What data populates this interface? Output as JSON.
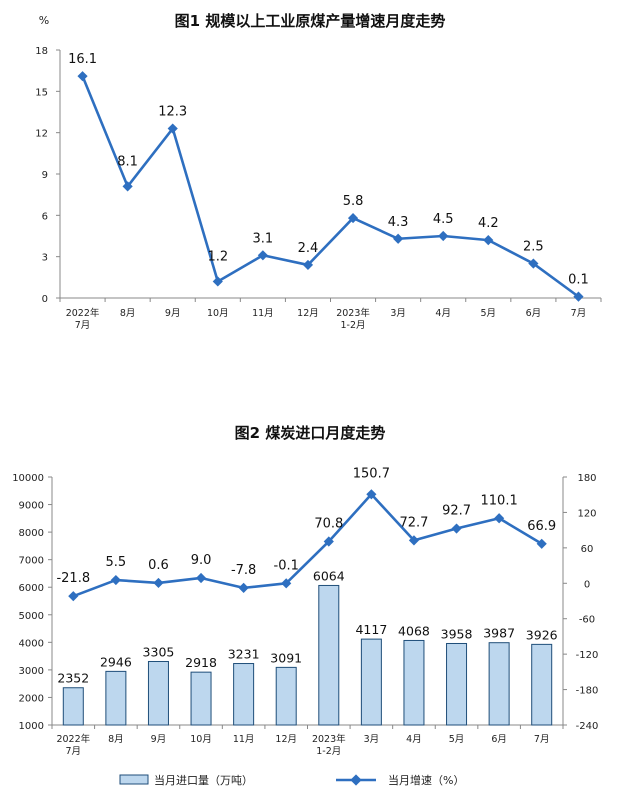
{
  "chart_data": [
    {
      "type": "line",
      "title": "图1  规模以上工业原煤产量增速月度走势",
      "ylabel": "%",
      "categories": [
        "2022年\n7月",
        "8月",
        "9月",
        "10月",
        "11月",
        "12月",
        "2023年\n1-2月",
        "3月",
        "4月",
        "5月",
        "6月",
        "7月"
      ],
      "values": [
        16.1,
        8.1,
        12.3,
        1.2,
        3.1,
        2.4,
        5.8,
        4.3,
        4.5,
        4.2,
        2.5,
        0.1
      ],
      "labels": [
        "16.1",
        "8.1",
        "12.3",
        "1.2",
        "3.1",
        "2.4",
        "5.8",
        "4.3",
        "4.5",
        "4.2",
        "2.5",
        "0.1"
      ],
      "ylim": [
        0,
        18
      ],
      "yticks": [
        "0",
        "3",
        "6",
        "9",
        "12",
        "15",
        "18"
      ],
      "color": "#2e6fc0",
      "grid": false
    },
    {
      "type": "bar+line",
      "title": "图2  煤炭进口月度走势",
      "categories": [
        "2022年\n7月",
        "8月",
        "9月",
        "10月",
        "11月",
        "12月",
        "2023年\n1-2月",
        "3月",
        "4月",
        "5月",
        "6月",
        "7月"
      ],
      "series": [
        {
          "name": "当月进口量（万吨）",
          "type": "bar",
          "axis": "left",
          "values": [
            2352,
            2946,
            3305,
            2918,
            3231,
            3091,
            6064,
            4117,
            4068,
            3958,
            3987,
            3926
          ],
          "labels": [
            "2352",
            "2946",
            "3305",
            "2918",
            "3231",
            "3091",
            "6064",
            "4117",
            "4068",
            "3958",
            "3987",
            "3926"
          ],
          "color": "#bdd7ee",
          "edge": "#1f4e79"
        },
        {
          "name": "当月增速（%）",
          "type": "line",
          "axis": "right",
          "values": [
            -21.8,
            5.5,
            0.6,
            9.0,
            -7.8,
            -0.1,
            70.8,
            150.7,
            72.7,
            92.7,
            110.1,
            66.9
          ],
          "labels": [
            "-21.8",
            "5.5",
            "0.6",
            "9.0",
            "-7.8",
            "-0.1",
            "70.8",
            "150.7",
            "72.7",
            "92.7",
            "110.1",
            "66.9"
          ],
          "color": "#2e6fc0"
        }
      ],
      "ylim_left": [
        1000,
        10000
      ],
      "yticks_left": [
        "1000",
        "2000",
        "3000",
        "4000",
        "5000",
        "6000",
        "7000",
        "8000",
        "9000",
        "10000"
      ],
      "ylim_right": [
        -240,
        180
      ],
      "yticks_right": [
        "-240",
        "-180",
        "-120",
        "-60",
        "0",
        "60",
        "120",
        "180"
      ],
      "legend": "bottom",
      "grid": false
    }
  ]
}
